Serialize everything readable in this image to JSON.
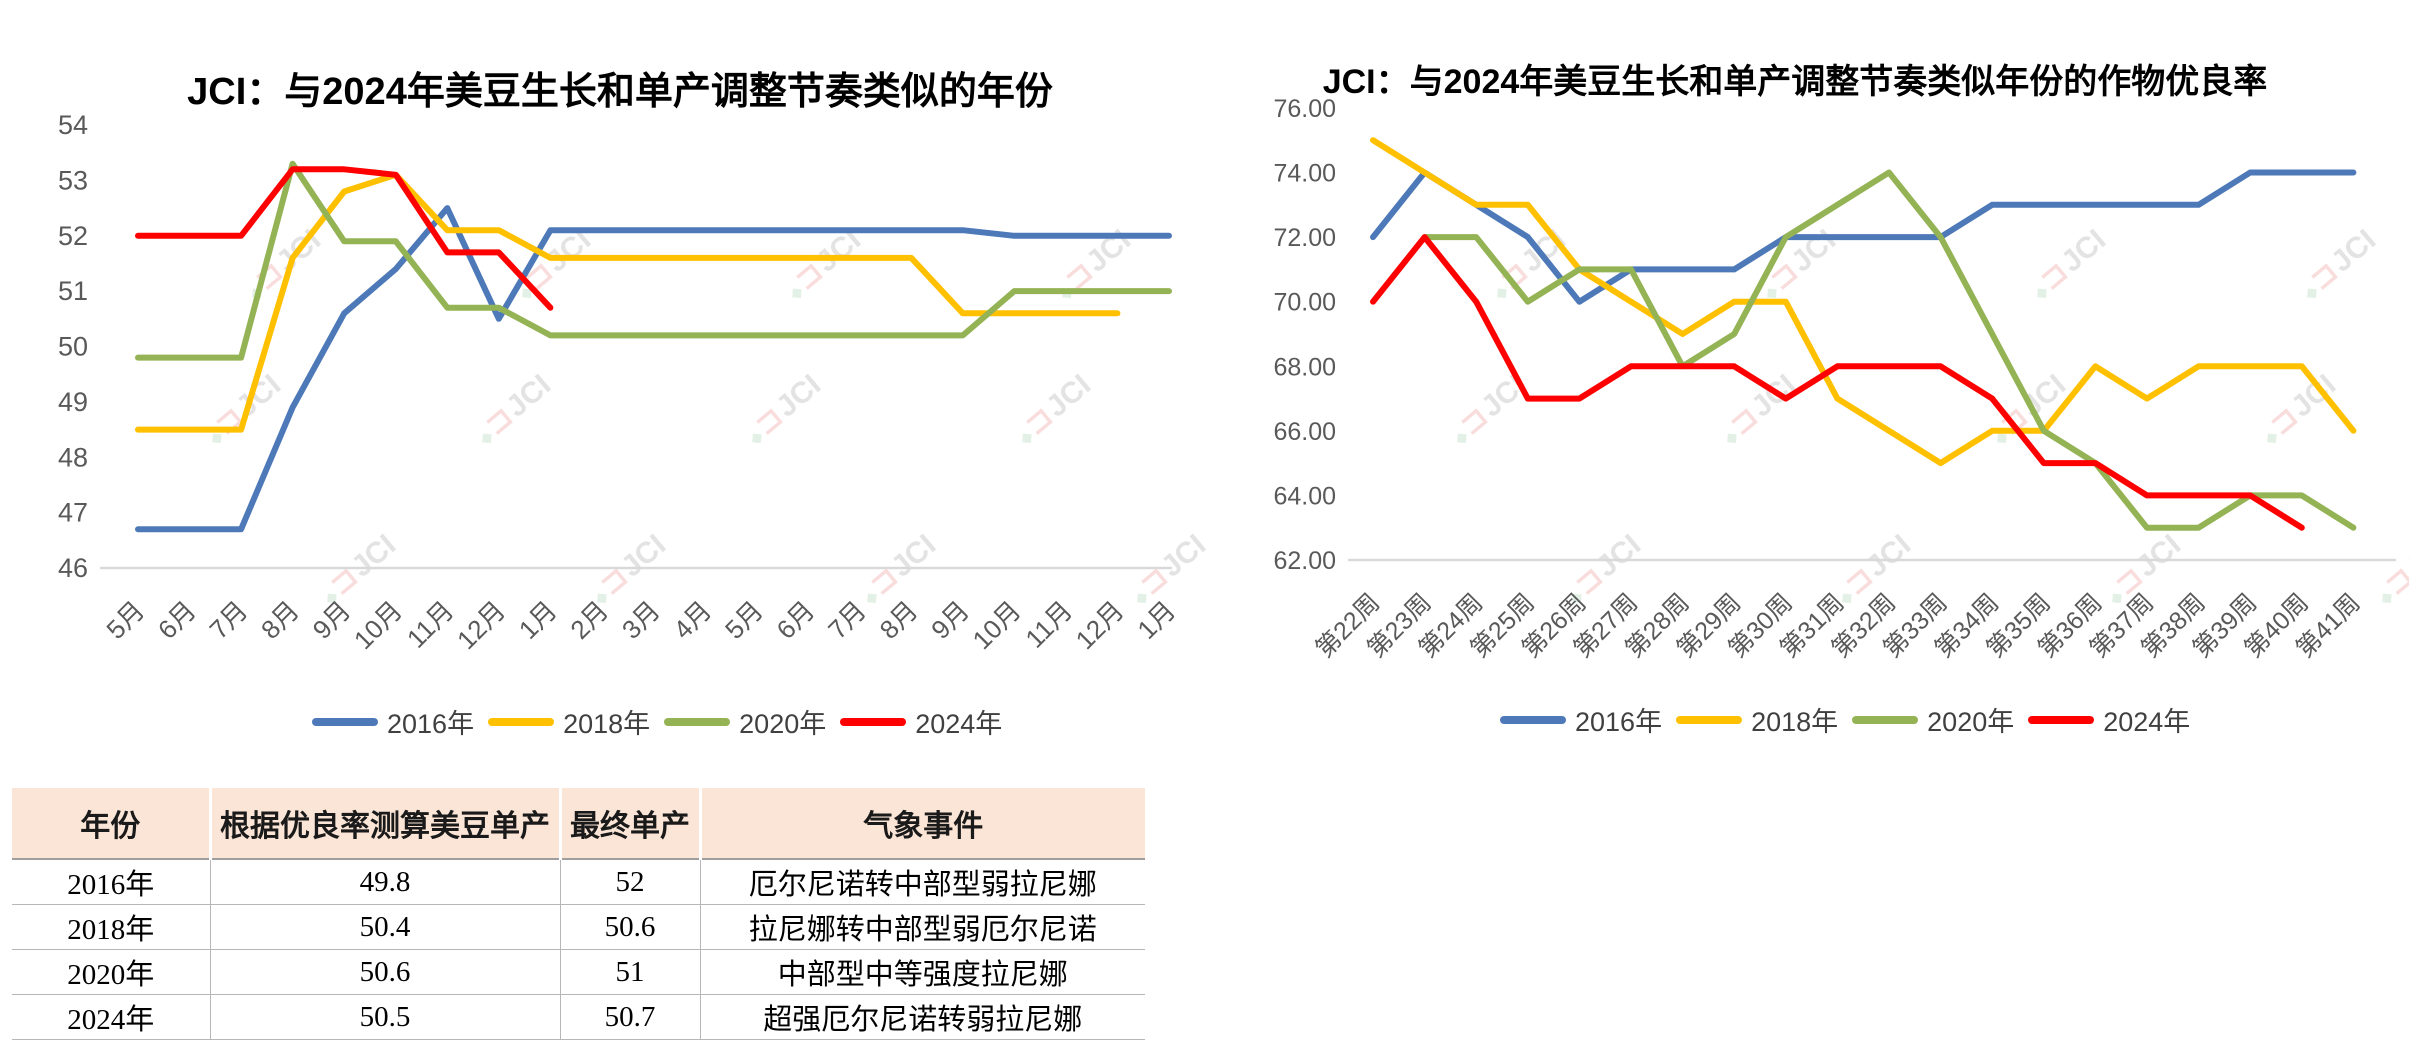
{
  "watermark": "JCI",
  "colors": {
    "blue": "#4E79B8",
    "yellow": "#FFC000",
    "green": "#94B354",
    "red": "#FF0000",
    "axis_text": "#595959",
    "axis_line": "#D9D9D9",
    "table_header_bg": "#FBE5D6"
  },
  "chart_data": [
    {
      "type": "line",
      "title": "JCI：与2024年美豆生长和单产调整节奏类似的年份",
      "xlabel": "",
      "ylabel": "",
      "ylim": [
        46,
        54
      ],
      "grid": false,
      "legend_position": "bottom",
      "y_ticks": [
        "46",
        "47",
        "48",
        "49",
        "50",
        "51",
        "52",
        "53",
        "54"
      ],
      "categories": [
        "5月",
        "6月",
        "7月",
        "8月",
        "9月",
        "10月",
        "11月",
        "12月",
        "1月",
        "2月",
        "3月",
        "4月",
        "5月",
        "6月",
        "7月",
        "8月",
        "9月",
        "10月",
        "11月",
        "12月",
        "1月"
      ],
      "series": [
        {
          "name": "2016年",
          "color": "#4E79B8",
          "values": [
            46.7,
            46.7,
            46.7,
            48.9,
            50.6,
            51.4,
            52.5,
            50.5,
            52.1,
            52.1,
            52.1,
            52.1,
            52.1,
            52.1,
            52.1,
            52.1,
            52.1,
            52,
            52,
            52,
            52
          ]
        },
        {
          "name": "2018年",
          "color": "#FFC000",
          "values": [
            48.5,
            48.5,
            48.5,
            51.6,
            52.8,
            53.1,
            52.1,
            52.1,
            51.6,
            51.6,
            51.6,
            51.6,
            51.6,
            51.6,
            51.6,
            51.6,
            50.6,
            50.6,
            50.6,
            50.6,
            null
          ]
        },
        {
          "name": "2020年",
          "color": "#94B354",
          "values": [
            49.8,
            49.8,
            49.8,
            53.3,
            51.9,
            51.9,
            50.7,
            50.7,
            50.2,
            50.2,
            50.2,
            50.2,
            50.2,
            50.2,
            50.2,
            50.2,
            50.2,
            51,
            51,
            51,
            51
          ]
        },
        {
          "name": "2024年",
          "color": "#FF0000",
          "values": [
            52,
            52,
            52,
            53.2,
            53.2,
            53.1,
            51.7,
            51.7,
            50.7,
            null,
            null,
            null,
            null,
            null,
            null,
            null,
            null,
            null,
            null,
            null,
            null
          ]
        }
      ]
    },
    {
      "type": "line",
      "title": "JCI：与2024年美豆生长和单产调整节奏类似年份的作物优良率",
      "xlabel": "",
      "ylabel": "",
      "ylim": [
        62,
        76
      ],
      "grid": false,
      "legend_position": "bottom",
      "y_ticks": [
        "62.00",
        "64.00",
        "66.00",
        "68.00",
        "70.00",
        "72.00",
        "74.00",
        "76.00"
      ],
      "categories": [
        "第22周",
        "第23周",
        "第24周",
        "第25周",
        "第26周",
        "第27周",
        "第28周",
        "第29周",
        "第30周",
        "第31周",
        "第32周",
        "第33周",
        "第34周",
        "第35周",
        "第36周",
        "第37周",
        "第38周",
        "第39周",
        "第40周",
        "第41周"
      ],
      "series": [
        {
          "name": "2016年",
          "color": "#4E79B8",
          "values": [
            72,
            74,
            73,
            72,
            70,
            71,
            71,
            71,
            72,
            72,
            72,
            72,
            73,
            73,
            73,
            73,
            73,
            74,
            74,
            74
          ]
        },
        {
          "name": "2018年",
          "color": "#FFC000",
          "values": [
            75,
            74,
            73,
            73,
            71,
            70,
            69,
            70,
            70,
            67,
            66,
            65,
            66,
            66,
            68,
            67,
            68,
            68,
            68,
            66
          ]
        },
        {
          "name": "2020年",
          "color": "#94B354",
          "values": [
            null,
            72,
            72,
            70,
            71,
            71,
            68,
            69,
            72,
            73,
            74,
            72,
            69,
            66,
            65,
            63,
            63,
            64,
            64,
            63
          ]
        },
        {
          "name": "2024年",
          "color": "#FF0000",
          "values": [
            70,
            72,
            70,
            67,
            67,
            68,
            68,
            68,
            67,
            68,
            68,
            68,
            67,
            65,
            65,
            64,
            64,
            64,
            63,
            null
          ]
        }
      ]
    }
  ],
  "table": {
    "headers": [
      "年份",
      "根据优良率测算美豆单产",
      "最终单产",
      "气象事件"
    ],
    "rows": [
      [
        "2016年",
        "49.8",
        "52",
        "厄尔尼诺转中部型弱拉尼娜"
      ],
      [
        "2018年",
        "50.4",
        "50.6",
        "拉尼娜转中部型弱厄尔尼诺"
      ],
      [
        "2020年",
        "50.6",
        "51",
        "中部型中等强度拉尼娜"
      ],
      [
        "2024年",
        "50.5",
        "50.7",
        "超强厄尔尼诺转弱拉尼娜"
      ]
    ]
  }
}
